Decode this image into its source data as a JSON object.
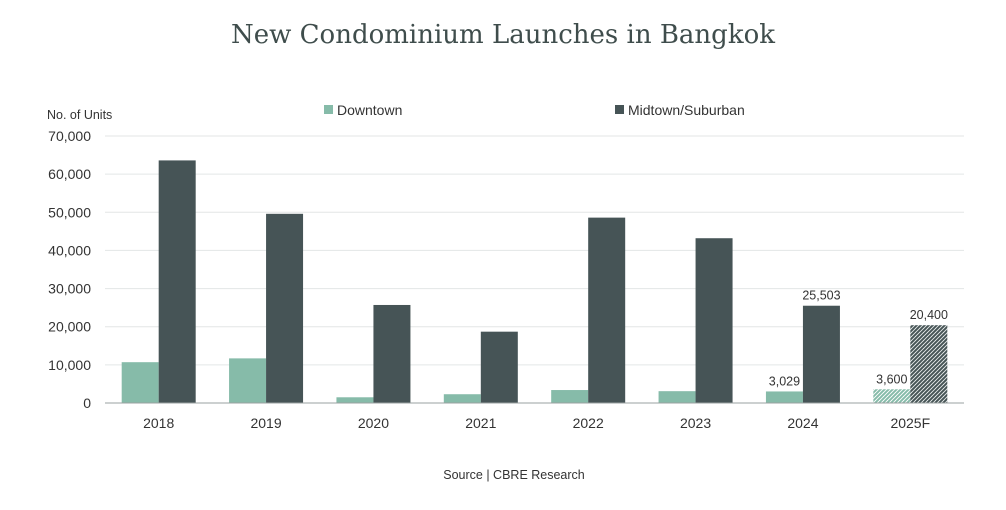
{
  "chart_data": {
    "type": "bar",
    "title": "New Condominium Launches in Bangkok",
    "ylabel": "No. of Units",
    "source": "Source | CBRE Research",
    "categories": [
      "2018",
      "2019",
      "2020",
      "2021",
      "2022",
      "2023",
      "2024",
      "2025F"
    ],
    "ylim": [
      0,
      70000
    ],
    "yticks": [
      0,
      10000,
      20000,
      30000,
      40000,
      50000,
      60000,
      70000
    ],
    "ytick_labels": [
      "0",
      "10,000",
      "20,000",
      "30,000",
      "40,000",
      "50,000",
      "60,000",
      "70,000"
    ],
    "legend_position": "top-center",
    "grid": true,
    "series": [
      {
        "name": "Downtown",
        "color": "#86bba9",
        "values": [
          10700,
          11700,
          1500,
          2300,
          3400,
          3100,
          3029,
          3600
        ],
        "data_labels": [
          "",
          "",
          "",
          "",
          "",
          "",
          "3,029",
          "3,600"
        ],
        "forecast_index": 7
      },
      {
        "name": "Midtown/Suburban",
        "color": "#465456",
        "values": [
          63600,
          49600,
          25700,
          18700,
          48600,
          43200,
          25503,
          20400
        ],
        "data_labels": [
          "",
          "",
          "",
          "",
          "",
          "",
          "25,503",
          "20,400"
        ],
        "forecast_index": 7
      }
    ]
  }
}
